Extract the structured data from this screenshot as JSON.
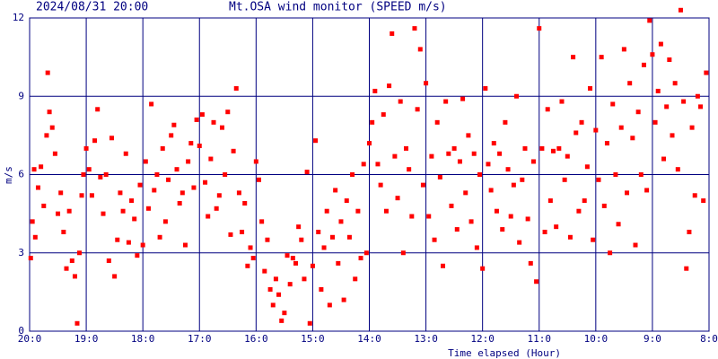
{
  "chart_data": {
    "type": "scatter",
    "title_left": "2024/08/31 20:00",
    "title": "Mt.OSA wind monitor (SPEED m/s)",
    "y_label": "m/s",
    "x_label": "Time elapsed (Hour)",
    "color": "#ff0000",
    "grid": true,
    "xlim": [
      0,
      12
    ],
    "ylim": [
      0,
      12
    ],
    "yticks": [
      0,
      3,
      6,
      9,
      12
    ],
    "xticks": [
      {
        "value": 0,
        "label": "20:0"
      },
      {
        "value": 1,
        "label": "19:0"
      },
      {
        "value": 2,
        "label": "18:0"
      },
      {
        "value": 3,
        "label": "17:0"
      },
      {
        "value": 4,
        "label": "16:0"
      },
      {
        "value": 5,
        "label": "15:0"
      },
      {
        "value": 6,
        "label": "14:0"
      },
      {
        "value": 7,
        "label": "13:0"
      },
      {
        "value": 8,
        "label": "12:0"
      },
      {
        "value": 9,
        "label": "11:0"
      },
      {
        "value": 10,
        "label": "10:0"
      },
      {
        "value": 11,
        "label": "9:0"
      },
      {
        "value": 12,
        "label": "8:0"
      }
    ],
    "x": [
      0.02,
      0.05,
      0.08,
      0.1,
      0.15,
      0.2,
      0.25,
      0.3,
      0.32,
      0.35,
      0.4,
      0.45,
      0.5,
      0.55,
      0.6,
      0.65,
      0.7,
      0.75,
      0.8,
      0.84,
      0.88,
      0.92,
      0.95,
      1.0,
      1.05,
      1.1,
      1.15,
      1.2,
      1.25,
      1.3,
      1.35,
      1.4,
      1.45,
      1.5,
      1.55,
      1.6,
      1.65,
      1.7,
      1.75,
      1.8,
      1.85,
      1.9,
      1.95,
      2.0,
      2.05,
      2.1,
      2.15,
      2.2,
      2.25,
      2.3,
      2.35,
      2.4,
      2.45,
      2.5,
      2.55,
      2.6,
      2.65,
      2.7,
      2.75,
      2.8,
      2.85,
      2.9,
      2.95,
      3.0,
      3.05,
      3.1,
      3.15,
      3.2,
      3.25,
      3.3,
      3.35,
      3.4,
      3.45,
      3.5,
      3.55,
      3.6,
      3.65,
      3.7,
      3.75,
      3.8,
      3.85,
      3.9,
      3.95,
      4.0,
      4.05,
      4.1,
      4.15,
      4.2,
      4.25,
      4.3,
      4.35,
      4.4,
      4.45,
      4.5,
      4.55,
      4.6,
      4.65,
      4.7,
      4.75,
      4.8,
      4.85,
      4.9,
      4.95,
      5.0,
      5.05,
      5.1,
      5.15,
      5.2,
      5.25,
      5.3,
      5.35,
      5.4,
      5.45,
      5.5,
      5.55,
      5.6,
      5.65,
      5.7,
      5.75,
      5.8,
      5.85,
      5.9,
      5.95,
      6.0,
      6.05,
      6.1,
      6.15,
      6.2,
      6.25,
      6.3,
      6.35,
      6.4,
      6.45,
      6.5,
      6.55,
      6.6,
      6.65,
      6.7,
      6.75,
      6.8,
      6.85,
      6.9,
      6.95,
      7.0,
      7.05,
      7.1,
      7.15,
      7.2,
      7.25,
      7.3,
      7.35,
      7.4,
      7.45,
      7.5,
      7.55,
      7.6,
      7.65,
      7.7,
      7.75,
      7.8,
      7.85,
      7.9,
      7.95,
      8.0,
      8.05,
      8.1,
      8.15,
      8.2,
      8.25,
      8.3,
      8.35,
      8.4,
      8.45,
      8.5,
      8.55,
      8.6,
      8.65,
      8.7,
      8.75,
      8.8,
      8.85,
      8.9,
      8.95,
      9.0,
      9.05,
      9.1,
      9.15,
      9.2,
      9.25,
      9.3,
      9.35,
      9.4,
      9.45,
      9.5,
      9.55,
      9.6,
      9.65,
      9.7,
      9.75,
      9.8,
      9.85,
      9.9,
      9.95,
      10.0,
      10.05,
      10.1,
      10.15,
      10.2,
      10.25,
      10.3,
      10.35,
      10.4,
      10.45,
      10.5,
      10.55,
      10.6,
      10.65,
      10.7,
      10.75,
      10.8,
      10.85,
      10.9,
      10.95,
      11.0,
      11.05,
      11.1,
      11.15,
      11.2,
      11.25,
      11.3,
      11.35,
      11.4,
      11.45,
      11.5,
      11.55,
      11.6,
      11.65,
      11.7,
      11.75,
      11.8,
      11.85,
      11.9,
      11.95
    ],
    "values": [
      2.8,
      4.2,
      6.2,
      3.6,
      5.5,
      6.3,
      4.8,
      7.5,
      9.9,
      8.4,
      7.8,
      6.8,
      4.5,
      5.3,
      3.8,
      2.4,
      4.6,
      2.7,
      2.1,
      0.3,
      3.0,
      5.2,
      6.0,
      7.0,
      6.2,
      5.2,
      7.3,
      8.5,
      5.9,
      4.5,
      6.0,
      2.7,
      7.4,
      2.1,
      3.5,
      5.3,
      4.6,
      6.8,
      3.4,
      5.0,
      4.3,
      2.9,
      5.6,
      3.3,
      6.5,
      4.7,
      8.7,
      5.4,
      6.0,
      3.6,
      7.0,
      4.2,
      5.8,
      7.5,
      7.9,
      6.2,
      4.9,
      5.3,
      3.3,
      6.5,
      7.2,
      5.5,
      8.1,
      7.1,
      8.3,
      5.7,
      4.4,
      6.6,
      8.0,
      4.7,
      5.2,
      7.8,
      6.0,
      8.4,
      3.7,
      6.9,
      9.3,
      5.3,
      3.8,
      4.9,
      2.5,
      3.2,
      2.8,
      6.5,
      5.8,
      4.2,
      2.3,
      3.5,
      1.6,
      1.0,
      2.0,
      1.4,
      0.4,
      0.7,
      2.9,
      1.8,
      2.8,
      2.6,
      4.0,
      3.5,
      2.0,
      6.1,
      0.3,
      2.5,
      7.3,
      3.8,
      1.6,
      3.2,
      4.6,
      1.0,
      3.6,
      5.4,
      2.6,
      4.2,
      1.2,
      5.0,
      3.6,
      6.0,
      2.0,
      4.6,
      2.8,
      6.4,
      3.0,
      7.2,
      8.0,
      9.2,
      6.4,
      5.6,
      8.3,
      4.6,
      9.4,
      11.4,
      6.7,
      5.1,
      8.8,
      3.0,
      7.0,
      6.2,
      4.4,
      11.6,
      8.5,
      10.8,
      5.6,
      9.5,
      4.4,
      6.7,
      3.5,
      8.0,
      5.9,
      2.5,
      8.8,
      6.8,
      4.8,
      7.0,
      3.9,
      6.5,
      8.9,
      5.3,
      7.5,
      4.2,
      6.8,
      3.2,
      6.0,
      2.4,
      9.3,
      6.4,
      5.4,
      7.2,
      4.6,
      6.8,
      3.9,
      8.0,
      6.2,
      4.4,
      5.6,
      9.0,
      3.4,
      5.8,
      7.0,
      4.3,
      2.6,
      6.5,
      1.9,
      11.6,
      7.0,
      3.8,
      8.5,
      5.0,
      6.9,
      4.0,
      7.0,
      8.8,
      5.8,
      6.7,
      3.6,
      10.5,
      7.6,
      4.6,
      8.0,
      5.0,
      6.3,
      9.3,
      3.5,
      7.7,
      5.8,
      10.5,
      4.8,
      7.2,
      3.0,
      8.7,
      6.0,
      4.1,
      7.8,
      10.8,
      5.3,
      9.5,
      7.4,
      3.3,
      8.4,
      6.0,
      10.2,
      5.4,
      11.9,
      10.6,
      8.0,
      9.2,
      11.0,
      6.6,
      8.6,
      10.4,
      7.5,
      9.5,
      6.2,
      12.3,
      8.8,
      2.4,
      3.8,
      7.8,
      5.2,
      9.0,
      8.6,
      5.0,
      9.9
    ]
  }
}
